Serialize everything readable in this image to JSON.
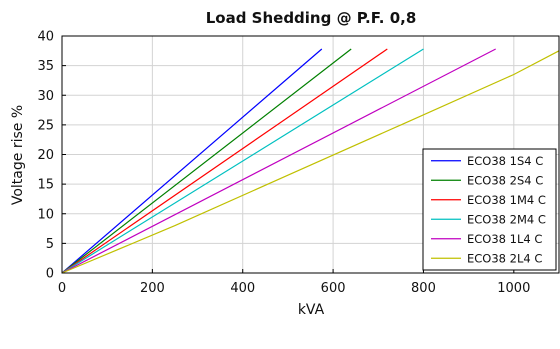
{
  "chart_data": {
    "type": "line",
    "title": "Load Shedding @ P.F. 0,8",
    "xlabel": "kVA",
    "ylabel": "Voltage rise %",
    "xlim": [
      0,
      1100
    ],
    "ylim": [
      0,
      40
    ],
    "xticks": [
      0,
      200,
      400,
      600,
      800,
      1000
    ],
    "yticks": [
      0,
      5,
      10,
      15,
      20,
      25,
      30,
      35,
      40
    ],
    "grid": true,
    "legend_position": "bottom-right",
    "series": [
      {
        "name": "ECO38 1S4 C",
        "color": "#0000ff",
        "x": [
          0,
          575
        ],
        "y": [
          0,
          37.8
        ]
      },
      {
        "name": "ECO38 2S4 C",
        "color": "#008000",
        "x": [
          0,
          640
        ],
        "y": [
          0,
          37.8
        ]
      },
      {
        "name": "ECO38 1M4 C",
        "color": "#ff0000",
        "x": [
          0,
          720
        ],
        "y": [
          0,
          37.8
        ]
      },
      {
        "name": "ECO38 2M4 C",
        "color": "#00c0c0",
        "x": [
          0,
          800
        ],
        "y": [
          0,
          37.8
        ]
      },
      {
        "name": "ECO38 1L4 C",
        "color": "#c000c0",
        "x": [
          0,
          960
        ],
        "y": [
          0,
          37.8
        ]
      },
      {
        "name": "ECO38 2L4 C",
        "color": "#c0c000",
        "x": [
          0,
          250,
          500,
          750,
          1000,
          1100
        ],
        "y": [
          0,
          8.0,
          16.5,
          25.0,
          33.5,
          37.5
        ]
      }
    ]
  }
}
